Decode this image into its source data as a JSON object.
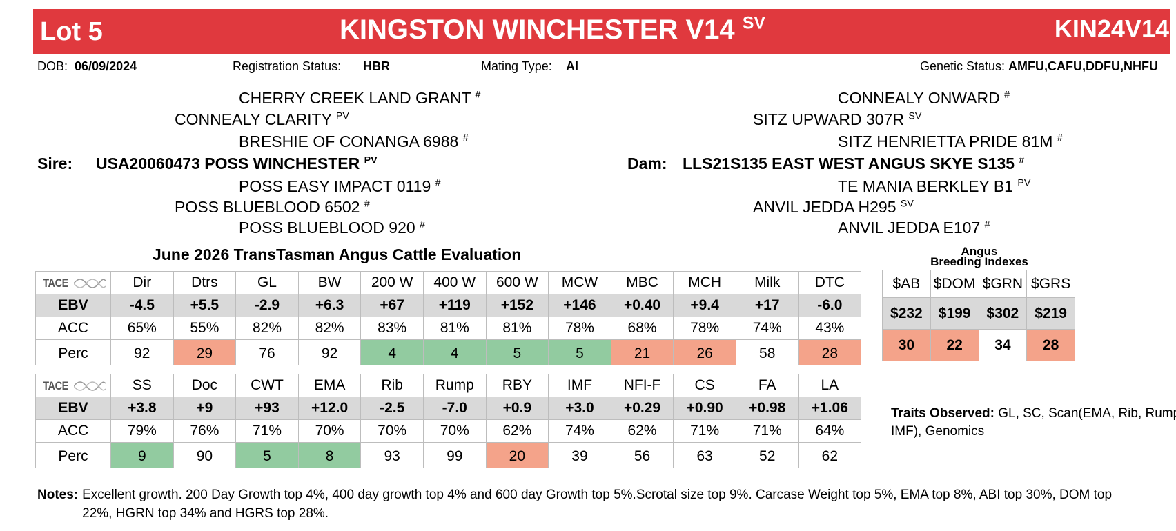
{
  "header": {
    "lot": "Lot 5",
    "name": "KINGSTON WINCHESTER V14",
    "name_sup": "SV",
    "code": "KIN24V14",
    "color": "#e0393e"
  },
  "info": {
    "dob_label": "DOB:",
    "dob": "06/09/2024",
    "reg_label": "Registration Status:",
    "reg": "HBR",
    "mating_label": "Mating Type:",
    "mating": "AI",
    "genetic_label": "Genetic Status:",
    "genetic": "AMFU,CAFU,DDFU,NHFU"
  },
  "pedigree": {
    "sire_label": "Sire:",
    "sire": {
      "name": "USA20060473 POSS WINCHESTER",
      "sup": "PV"
    },
    "sire_sire": {
      "name": "CONNEALY CLARITY",
      "sup": "PV"
    },
    "sire_sire_sire": {
      "name": "CHERRY CREEK LAND GRANT",
      "sup": "#"
    },
    "sire_sire_dam": {
      "name": "BRESHIE OF CONANGA 6988",
      "sup": "#"
    },
    "sire_dam": {
      "name": "POSS BLUEBLOOD 6502",
      "sup": "#"
    },
    "sire_dam_sire": {
      "name": "POSS EASY IMPACT 0119",
      "sup": "#"
    },
    "sire_dam_dam": {
      "name": "POSS BLUEBLOOD 920",
      "sup": "#"
    },
    "dam_label": "Dam:",
    "dam": {
      "name": "LLS21S135 EAST WEST ANGUS SKYE S135",
      "sup": "#"
    },
    "dam_sire": {
      "name": "SITZ UPWARD 307R",
      "sup": "SV"
    },
    "dam_sire_sire": {
      "name": "CONNEALY ONWARD",
      "sup": "#"
    },
    "dam_sire_dam": {
      "name": "SITZ HENRIETTA PRIDE 81M",
      "sup": "#"
    },
    "dam_dam": {
      "name": "ANVIL JEDDA H295",
      "sup": "SV"
    },
    "dam_dam_sire": {
      "name": "TE MANIA BERKLEY B1",
      "sup": "PV"
    },
    "dam_dam_dam": {
      "name": "ANVIL JEDDA E107",
      "sup": "#"
    }
  },
  "evaluation_title": "June 2026 TransTasman Angus Cattle Evaluation",
  "tace_logo": {
    "word": "TACE",
    "icon": "dna-helix-icon"
  },
  "row_labels": {
    "ebv": "EBV",
    "acc": "ACC",
    "perc": "Perc"
  },
  "table1": {
    "traits": [
      "Dir",
      "Dtrs",
      "GL",
      "BW",
      "200 W",
      "400 W",
      "600 W",
      "MCW",
      "MBC",
      "MCH",
      "Milk",
      "DTC"
    ],
    "ebv": [
      "-4.5",
      "+5.5",
      "-2.9",
      "+6.3",
      "+67",
      "+119",
      "+152",
      "+146",
      "+0.40",
      "+9.4",
      "+17",
      "-6.0"
    ],
    "acc": [
      "65%",
      "55%",
      "82%",
      "82%",
      "83%",
      "81%",
      "81%",
      "78%",
      "68%",
      "78%",
      "74%",
      "43%"
    ],
    "perc": [
      "92",
      "29",
      "76",
      "92",
      "4",
      "4",
      "5",
      "5",
      "21",
      "26",
      "58",
      "28"
    ],
    "perc_highlight": [
      "",
      "r",
      "",
      "",
      "g",
      "g",
      "g",
      "g",
      "r",
      "r",
      "",
      "r"
    ]
  },
  "table2": {
    "traits": [
      "SS",
      "Doc",
      "CWT",
      "EMA",
      "Rib",
      "Rump",
      "RBY",
      "IMF",
      "NFI-F",
      "CS",
      "FA",
      "LA"
    ],
    "ebv": [
      "+3.8",
      "+9",
      "+93",
      "+12.0",
      "-2.5",
      "-7.0",
      "+0.9",
      "+3.0",
      "+0.29",
      "+0.90",
      "+0.98",
      "+1.06"
    ],
    "acc": [
      "79%",
      "76%",
      "71%",
      "70%",
      "70%",
      "70%",
      "62%",
      "74%",
      "62%",
      "71%",
      "71%",
      "64%"
    ],
    "perc": [
      "9",
      "90",
      "5",
      "8",
      "93",
      "99",
      "20",
      "39",
      "56",
      "63",
      "52",
      "62"
    ],
    "perc_highlight": [
      "g",
      "",
      "g",
      "g",
      "",
      "",
      "r",
      "",
      "",
      "",
      "",
      ""
    ]
  },
  "indexes": {
    "title_line1": "Angus",
    "title_line2": "Breeding Indexes",
    "labels": [
      "$AB",
      "$DOM",
      "$GRN",
      "$GRS"
    ],
    "values": [
      "$232",
      "$199",
      "$302",
      "$219"
    ],
    "perc": [
      "30",
      "22",
      "34",
      "28"
    ],
    "perc_highlight": [
      "r",
      "r",
      "w",
      "r"
    ]
  },
  "highlight_colors": {
    "good": "#92cba0",
    "caution": "#f4a38a",
    "ebv_row": "#d9d9d9"
  },
  "traits_observed": {
    "label": "Traits Observed:",
    "text": "GL, SC, Scan(EMA, Rib, Rump, IMF), Genomics"
  },
  "notes": {
    "label": "Notes:",
    "text": "Excellent growth. 200 Day Growth top 4%, 400 day growth top 4% and 600 day Growth top 5%.Scrotal size top 9%. Carcase Weight top 5%, EMA top 8%, ABI top 30%, DOM top 22%, HGRN top 34% and HGRS top 28%."
  }
}
